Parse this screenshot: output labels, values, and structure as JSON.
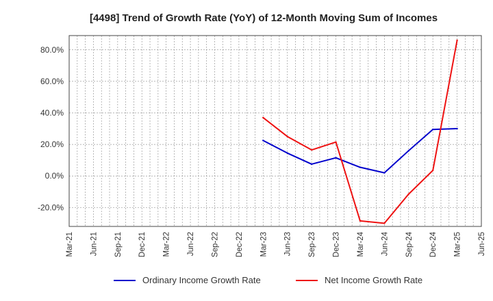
{
  "chart_data": {
    "type": "line",
    "title": "[4498]  Trend of Growth Rate (YoY) of 12-Month Moving Sum of Incomes",
    "xlabel": "",
    "ylabel": "",
    "x_labels": [
      "Mar-21",
      "Jun-21",
      "Sep-21",
      "Dec-21",
      "Mar-22",
      "Jun-22",
      "Sep-22",
      "Dec-22",
      "Mar-23",
      "Jun-23",
      "Sep-23",
      "Dec-23",
      "Mar-24",
      "Jun-24",
      "Sep-24",
      "Dec-24",
      "Mar-25",
      "Jun-25"
    ],
    "y_ticks": [
      {
        "value": 80,
        "label": "80.0%"
      },
      {
        "value": 60,
        "label": "60.0%"
      },
      {
        "value": 40,
        "label": "40.0%"
      },
      {
        "value": 20,
        "label": "20.0%"
      },
      {
        "value": 0,
        "label": "0.0%"
      },
      {
        "value": -20,
        "label": "-20.0%"
      }
    ],
    "ylim": [
      -32,
      89
    ],
    "grid": true,
    "legend_position": "bottom",
    "series": [
      {
        "name": "Ordinary Income Growth Rate",
        "color": "#0000cc",
        "points": [
          {
            "x": "Mar-23",
            "y": 22.5
          },
          {
            "x": "Jun-23",
            "y": 14.5
          },
          {
            "x": "Sep-23",
            "y": 7.5
          },
          {
            "x": "Dec-23",
            "y": 11.5
          },
          {
            "x": "Mar-24",
            "y": 5.5
          },
          {
            "x": "Jun-24",
            "y": 2.0
          },
          {
            "x": "Sep-24",
            "y": 16.0
          },
          {
            "x": "Dec-24",
            "y": 29.5
          },
          {
            "x": "Mar-25",
            "y": 30.0
          }
        ]
      },
      {
        "name": "Net Income Growth Rate",
        "color": "#ee1111",
        "points": [
          {
            "x": "Mar-23",
            "y": 37.0
          },
          {
            "x": "Jun-23",
            "y": 25.0
          },
          {
            "x": "Sep-23",
            "y": 16.5
          },
          {
            "x": "Dec-23",
            "y": 21.5
          },
          {
            "x": "Mar-24",
            "y": -28.5
          },
          {
            "x": "Jun-24",
            "y": -30.0
          },
          {
            "x": "Sep-24",
            "y": -11.5
          },
          {
            "x": "Dec-24",
            "y": 3.5
          },
          {
            "x": "Mar-25",
            "y": 86.0
          }
        ]
      }
    ]
  }
}
